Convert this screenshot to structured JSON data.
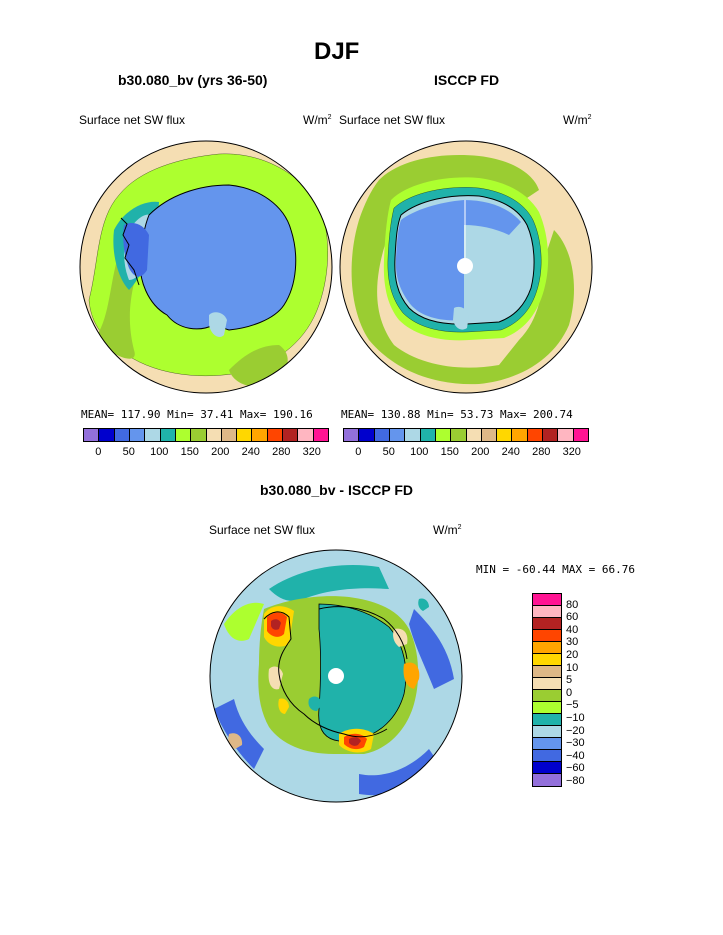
{
  "title": "DJF",
  "panel_left": {
    "subtitle": "b30.080_bv (yrs 36-50)",
    "field": "Surface net SW flux",
    "units_base": "W/m",
    "units_exp": "2",
    "stats": "MEAN= 117.90  Min=  37.41  Max= 190.16"
  },
  "panel_right": {
    "subtitle": "ISCCP FD",
    "field": "Surface net SW flux",
    "units_base": "W/m",
    "units_exp": "2",
    "stats": "MEAN= 130.88  Min=  53.73  Max= 200.74"
  },
  "panel_diff": {
    "subtitle": "b30.080_bv - ISCCP FD",
    "field": "Surface net SW flux",
    "units_base": "W/m",
    "units_exp": "2",
    "minmax": "MIN = -60.44  MAX =  66.76"
  },
  "colorbar_top": {
    "colors": [
      "#9370DB",
      "#0000CD",
      "#4169E1",
      "#6495ED",
      "#ADD8E6",
      "#20B2AA",
      "#ADFF2F",
      "#9ACD32",
      "#F5DEB3",
      "#DEB887",
      "#FFD700",
      "#FFA500",
      "#FF4500",
      "#B22222",
      "#FFB6C1",
      "#FF1493"
    ],
    "labels": [
      "0",
      "50",
      "100",
      "150",
      "200",
      "240",
      "280",
      "320"
    ]
  },
  "colorbar_diff": {
    "colors": [
      "#FF1493",
      "#FFB6C1",
      "#B22222",
      "#FF4500",
      "#FFA500",
      "#FFD700",
      "#DEB887",
      "#F5DEB3",
      "#9ACD32",
      "#ADFF2F",
      "#20B2AA",
      "#ADD8E6",
      "#6495ED",
      "#4169E1",
      "#0000CD",
      "#9370DB"
    ],
    "labels": [
      "80",
      "60",
      "40",
      "30",
      "20",
      "10",
      "5",
      "0",
      "−5",
      "−10",
      "−20",
      "−30",
      "−40",
      "−60",
      "−80"
    ]
  }
}
